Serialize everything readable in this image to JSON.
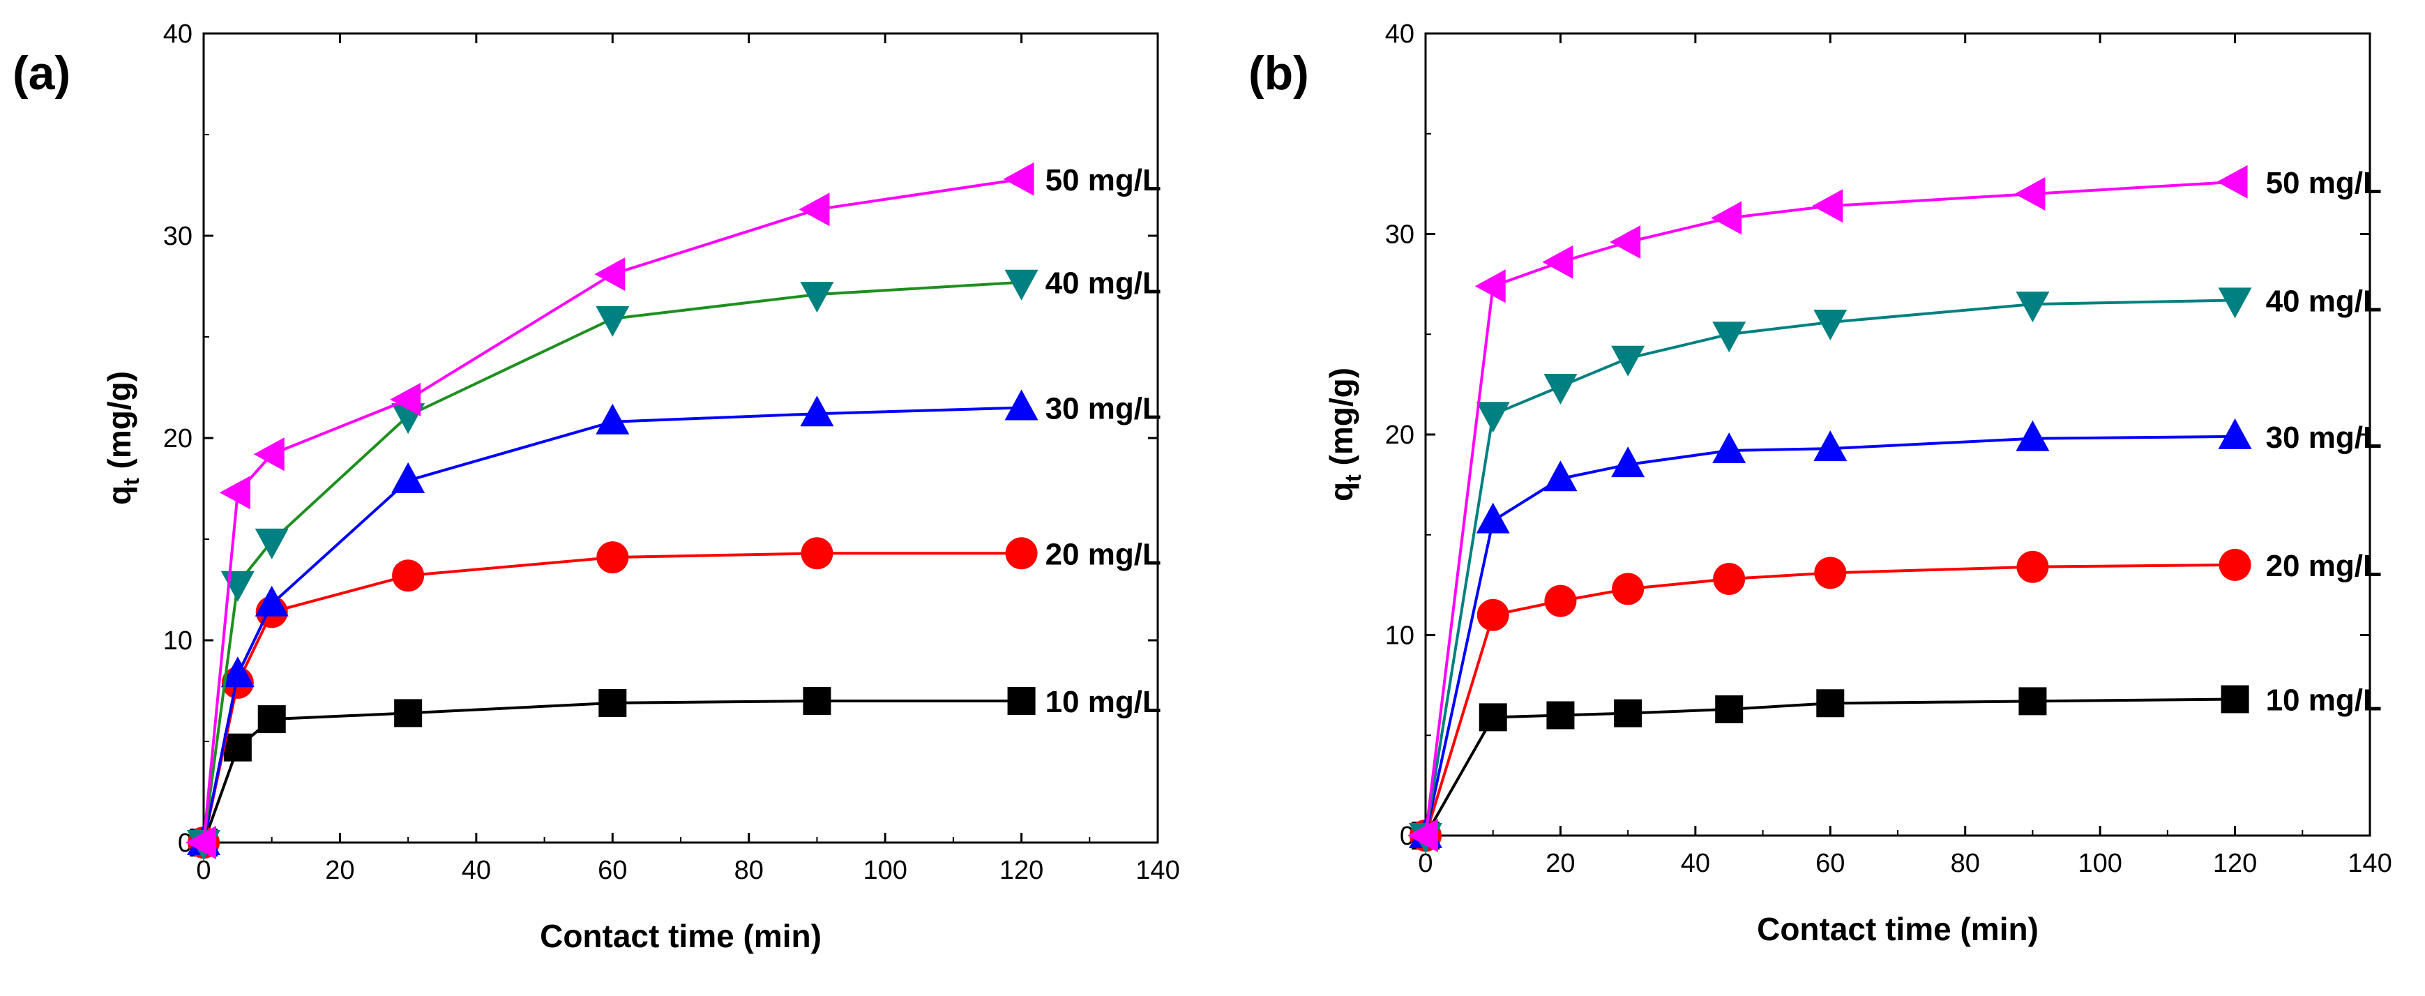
{
  "chart_data": [
    {
      "type": "line",
      "panel_label": "(a)",
      "xlabel": "Contact time (min)",
      "ylabel": "q",
      "ylabel_sub": "t",
      "ylabel_unit": " (mg/g)",
      "xlim": [
        0,
        140
      ],
      "ylim": [
        0,
        40
      ],
      "xticks": [
        0,
        20,
        40,
        60,
        80,
        100,
        120,
        140
      ],
      "yticks": [
        0,
        10,
        20,
        30,
        40
      ],
      "series": [
        {
          "name": "10 mg/L",
          "color": "#000000",
          "marker": "square",
          "x": [
            0,
            5,
            10,
            30,
            60,
            90,
            120
          ],
          "y": [
            0,
            4.7,
            6.1,
            6.4,
            6.9,
            7.0,
            7.0
          ]
        },
        {
          "name": "20 mg/L",
          "color": "#ff0000",
          "marker": "circle",
          "x": [
            0,
            5,
            10,
            30,
            60,
            90,
            120
          ],
          "y": [
            0,
            7.9,
            11.4,
            13.2,
            14.1,
            14.3,
            14.3
          ]
        },
        {
          "name": "30 mg/L",
          "color": "#0000ff",
          "marker": "triangle-up",
          "x": [
            0,
            5,
            10,
            30,
            60,
            90,
            120
          ],
          "y": [
            0,
            8.3,
            11.8,
            17.9,
            20.8,
            21.2,
            21.5
          ]
        },
        {
          "name": "40 mg/L",
          "color": "#1f8f1f",
          "marker_color": "#008080",
          "marker": "triangle-down",
          "x": [
            0,
            5,
            10,
            30,
            60,
            90,
            120
          ],
          "y": [
            0,
            12.8,
            14.9,
            21.1,
            25.9,
            27.1,
            27.7
          ]
        },
        {
          "name": "50 mg/L",
          "color": "#ff00ff",
          "marker": "triangle-left",
          "x": [
            0,
            5,
            10,
            30,
            60,
            90,
            120
          ],
          "y": [
            0,
            17.3,
            19.2,
            21.9,
            28.1,
            31.3,
            32.8
          ]
        }
      ]
    },
    {
      "type": "line",
      "panel_label": "(b)",
      "xlabel": "Contact time (min)",
      "ylabel": "q",
      "ylabel_sub": "t",
      "ylabel_unit": " (mg/g)",
      "xlim": [
        0,
        140
      ],
      "ylim": [
        0,
        40
      ],
      "xticks": [
        0,
        20,
        40,
        60,
        80,
        100,
        120,
        140
      ],
      "yticks": [
        0,
        10,
        20,
        30,
        40
      ],
      "series": [
        {
          "name": "10 mg/L",
          "color": "#000000",
          "marker": "square",
          "x": [
            0,
            10,
            20,
            30,
            45,
            60,
            90,
            120
          ],
          "y": [
            0,
            5.9,
            6.0,
            6.1,
            6.3,
            6.6,
            6.7,
            6.8
          ]
        },
        {
          "name": "20 mg/L",
          "color": "#ff0000",
          "marker": "circle",
          "x": [
            0,
            10,
            20,
            30,
            45,
            60,
            90,
            120
          ],
          "y": [
            0,
            11.0,
            11.7,
            12.3,
            12.8,
            13.1,
            13.4,
            13.5
          ]
        },
        {
          "name": "30 mg/L",
          "color": "#0000ff",
          "marker": "triangle-up",
          "x": [
            0,
            10,
            20,
            30,
            45,
            60,
            90,
            120
          ],
          "y": [
            0,
            15.7,
            17.8,
            18.5,
            19.2,
            19.3,
            19.8,
            19.9
          ]
        },
        {
          "name": "40 mg/L",
          "color": "#008080",
          "marker": "triangle-down",
          "x": [
            0,
            10,
            20,
            30,
            45,
            60,
            90,
            120
          ],
          "y": [
            0,
            21.0,
            22.4,
            23.8,
            25.0,
            25.6,
            26.5,
            26.7
          ]
        },
        {
          "name": "50 mg/L",
          "color": "#ff00ff",
          "marker": "triangle-left",
          "x": [
            0,
            10,
            20,
            30,
            45,
            60,
            90,
            120
          ],
          "y": [
            0,
            27.4,
            28.6,
            29.6,
            30.8,
            31.4,
            32.0,
            32.6
          ]
        }
      ]
    }
  ]
}
